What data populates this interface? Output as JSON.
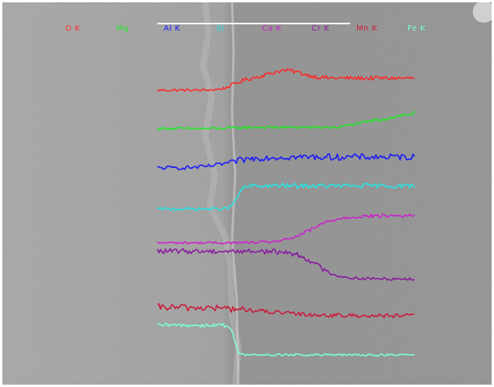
{
  "chart_data": {
    "type": "line",
    "title": "",
    "xlabel": "",
    "ylabel": "",
    "grid": false,
    "legend_placement": "top",
    "scale_bar": {
      "shown": true,
      "label": ""
    },
    "series": [
      {
        "name": "O K",
        "color": "#ff2a2a",
        "start": 0.18,
        "end": 0.52,
        "trans": 0.3,
        "width": 0.025,
        "peak": 0.62,
        "peak_width": 0.09,
        "noise": 0.06,
        "bump_after": 0.0,
        "bump_amp": 0.0
      },
      {
        "name": "Mg",
        "color": "#22e82a",
        "start": 0.08,
        "end": 0.12,
        "trans": 0.3,
        "width": 0.03,
        "peak": 0.0,
        "peak_width": 0.1,
        "noise": 0.07,
        "bump_after": 0.7,
        "bump_amp": 0.75
      },
      {
        "name": "Al K",
        "color": "#1a1aff",
        "start": 0.1,
        "end": 0.45,
        "trans": 0.28,
        "width": 0.05,
        "peak": 0.0,
        "peak_width": 0.1,
        "noise": 0.1,
        "bump_after": 0.0,
        "bump_amp": 0.0
      },
      {
        "name": "Si",
        "color": "#22e6e6",
        "start": 0.02,
        "end": 0.72,
        "trans": 0.31,
        "width": 0.012,
        "peak": 0.0,
        "peak_width": 0.1,
        "noise": 0.07,
        "bump_after": 0.0,
        "bump_amp": 0.0
      },
      {
        "name": "Ca K",
        "color": "#cc22cc",
        "start": 0.04,
        "end": 0.86,
        "trans": 0.6,
        "width": 0.05,
        "peak": 0.0,
        "peak_width": 0.1,
        "noise": 0.06,
        "bump_after": 0.0,
        "bump_amp": 0.0
      },
      {
        "name": "Cr K",
        "color": "#8a1aa0",
        "start": 0.9,
        "end": 0.02,
        "trans": 0.62,
        "width": 0.04,
        "peak": 0.0,
        "peak_width": 0.1,
        "noise": 0.08,
        "bump_after": 0.0,
        "bump_amp": 0.0
      },
      {
        "name": "Mn K",
        "color": "#cc1a3a",
        "start": 0.4,
        "end": 0.08,
        "trans": 0.42,
        "width": 0.09,
        "peak": 0.0,
        "peak_width": 0.1,
        "noise": 0.13,
        "bump_after": 0.0,
        "bump_amp": 0.0
      },
      {
        "name": "Fe K",
        "color": "#7affd0",
        "start": 0.92,
        "end": 0.02,
        "trans": 0.3,
        "width": 0.008,
        "peak": 0.0,
        "peak_width": 0.1,
        "noise": 0.06,
        "bump_after": 0.0,
        "bump_amp": 0.0
      }
    ]
  }
}
